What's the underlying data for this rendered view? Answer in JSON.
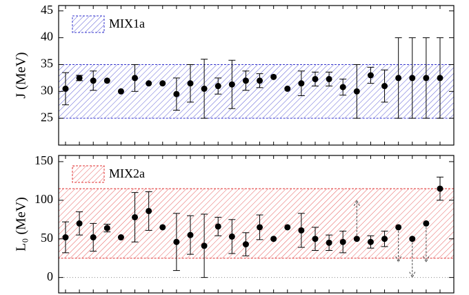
{
  "chart_data": [
    {
      "type": "errorbar",
      "ylabel": "J (MeV)",
      "ylim": [
        20,
        46
      ],
      "yticks": [
        25,
        30,
        35,
        40,
        45
      ],
      "band": {
        "label": "MIX1a",
        "range": [
          25,
          35
        ],
        "color": "#3333cc"
      },
      "categories": [
        null,
        null,
        null,
        null,
        null,
        null,
        null,
        null,
        null,
        null,
        null,
        null,
        null,
        null,
        null,
        null,
        null,
        null,
        null,
        null,
        null,
        null,
        null,
        null,
        null,
        null,
        null,
        null
      ],
      "values": [
        30.5,
        32.5,
        32,
        32,
        30,
        32.5,
        31.5,
        31.5,
        29.5,
        31.5,
        30.5,
        31,
        31.3,
        32,
        32,
        32.7,
        30.5,
        31.5,
        32.3,
        32.3,
        30.8,
        30,
        33,
        31,
        32.5,
        32.5,
        32.5,
        32.5
      ],
      "errors": [
        3,
        0.5,
        1.8,
        null,
        null,
        2.5,
        null,
        null,
        3,
        3.5,
        5.5,
        1.5,
        4.5,
        1.8,
        1.3,
        null,
        null,
        2.3,
        1.3,
        1.3,
        1.5,
        5,
        1.5,
        3,
        7.5,
        7.5,
        7.5,
        7.5
      ],
      "color": "#000000"
    },
    {
      "type": "errorbar",
      "ylabel": "L₀ (MeV)",
      "ylim": [
        -20,
        158
      ],
      "yticks": [
        0,
        50,
        100,
        150
      ],
      "band": {
        "label": "MIX2a",
        "range": [
          25,
          115
        ],
        "color": "#e03030"
      },
      "reference_line": 0,
      "categories": [
        null,
        null,
        null,
        null,
        null,
        null,
        null,
        null,
        null,
        null,
        null,
        null,
        null,
        null,
        null,
        null,
        null,
        null,
        null,
        null,
        null,
        null,
        null,
        null,
        null,
        null,
        null,
        null
      ],
      "values": [
        52,
        70,
        52,
        64,
        52,
        78,
        86,
        65,
        46,
        55,
        41,
        66,
        53,
        43,
        65,
        50,
        65,
        61,
        50,
        45,
        46,
        50,
        46,
        50,
        65,
        50,
        70,
        115
      ],
      "errors": [
        20,
        15,
        18,
        5,
        null,
        32,
        25,
        null,
        37,
        25,
        41,
        12,
        22,
        15,
        16,
        null,
        null,
        22,
        15,
        10,
        14,
        null,
        8,
        10,
        null,
        null,
        null,
        15
      ],
      "arrows": [
        null,
        null,
        null,
        null,
        null,
        null,
        null,
        null,
        null,
        null,
        null,
        null,
        null,
        null,
        null,
        null,
        null,
        null,
        null,
        null,
        null,
        100,
        null,
        null,
        20,
        0,
        20,
        null
      ],
      "color": "#000000"
    }
  ]
}
